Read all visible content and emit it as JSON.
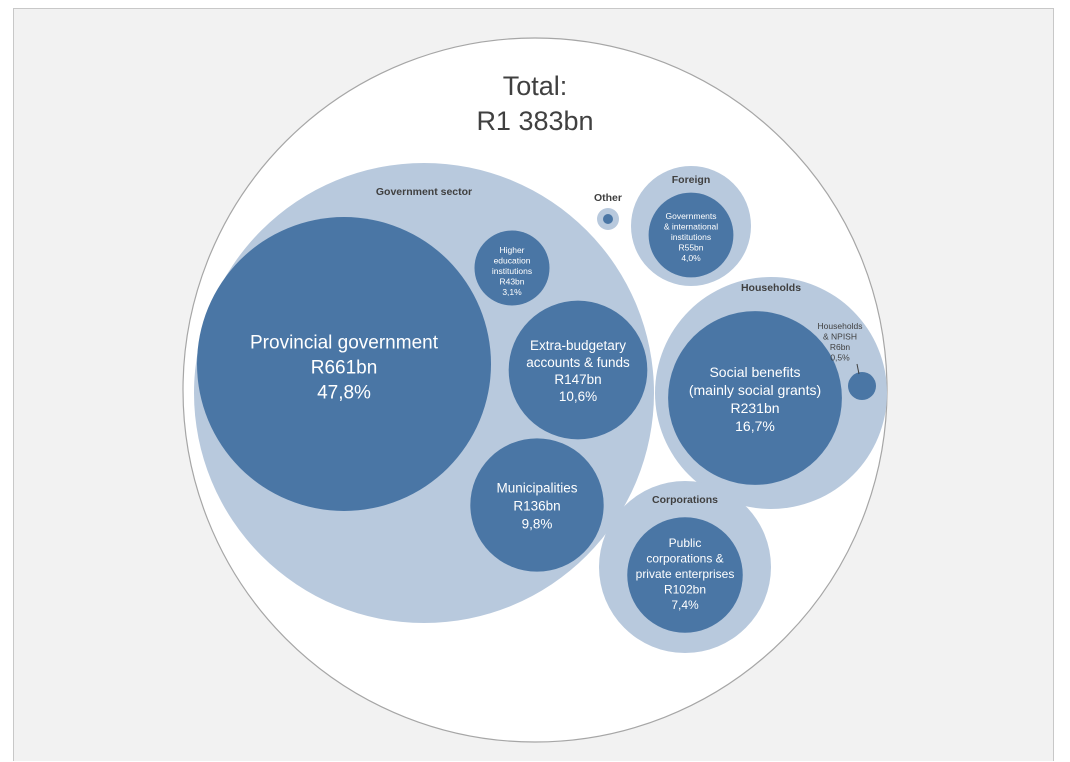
{
  "colors": {
    "outer_fill": "#ffffff",
    "outer_stroke": "#a6a6a6",
    "group_fill": "#b8c9dd",
    "bubble_fill": "#4a76a5",
    "text_dark": "#404040",
    "text_light": "#ffffff",
    "panel_bg": "#f2f2f2"
  },
  "chart_data": {
    "type": "packed-bubble",
    "total": {
      "label": "Total:",
      "value_text": "R1 383bn",
      "value_bn": 1383
    },
    "groups": [
      {
        "name": "Government sector",
        "items": [
          {
            "name": "Provincial government",
            "value_text": "R661bn",
            "pct": "47,8%",
            "value_bn": 661
          },
          {
            "name": "Extra-budgetary accounts & funds",
            "value_text": "R147bn",
            "pct": "10,6%",
            "value_bn": 147
          },
          {
            "name": "Municipalities",
            "value_text": "R136bn",
            "pct": "9,8%",
            "value_bn": 136
          },
          {
            "name": "Higher education institutions",
            "value_text": "R43bn",
            "pct": "3,1%",
            "value_bn": 43
          }
        ]
      },
      {
        "name": "Households",
        "items": [
          {
            "name": "Social benefits (mainly social grants)",
            "value_text": "R231bn",
            "pct": "16,7%",
            "value_bn": 231
          },
          {
            "name": "Households & NPISH",
            "value_text": "R6bn",
            "pct": "0,5%",
            "value_bn": 6
          }
        ]
      },
      {
        "name": "Corporations",
        "items": [
          {
            "name": "Public corporations & private enterprises",
            "value_text": "R102bn",
            "pct": "7,4%",
            "value_bn": 102
          }
        ]
      },
      {
        "name": "Foreign",
        "items": [
          {
            "name": "Governments & international institutions",
            "value_text": "R55bn",
            "pct": "4,0%",
            "value_bn": 55
          }
        ]
      },
      {
        "name": "Other",
        "items": [
          {
            "name": "",
            "value_text": "",
            "pct": "",
            "value_bn": 1
          }
        ]
      }
    ]
  }
}
